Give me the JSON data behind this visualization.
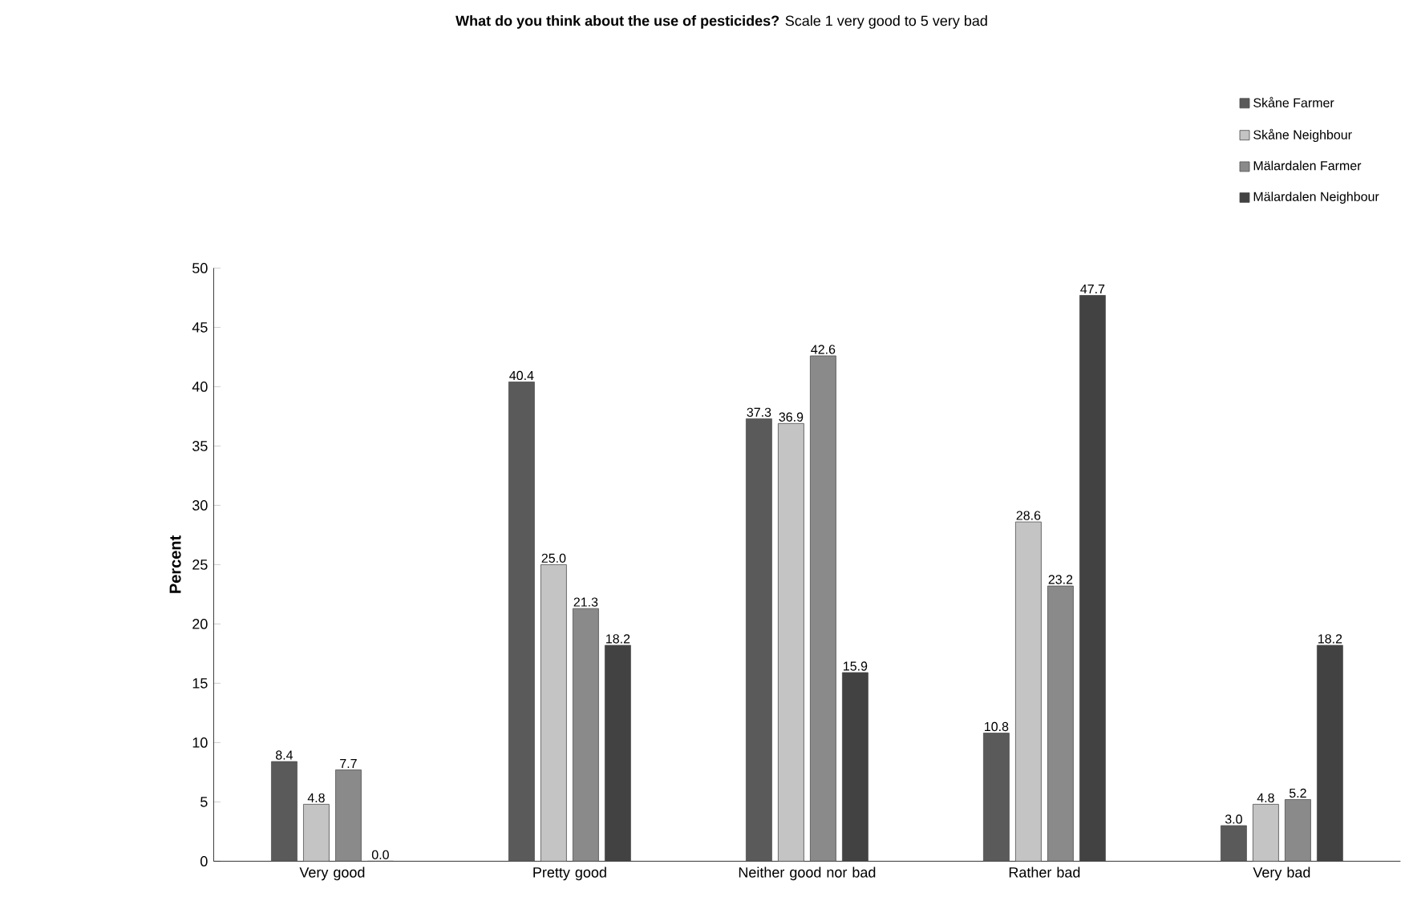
{
  "chart_data": {
    "type": "bar",
    "title": "**What do you think about the use of pesticides?** Scale 1 very good to 5 very bad",
    "ylabel": "Percent",
    "categories": [
      "Very good",
      "Pretty good",
      "Neither good nor bad",
      "Rather bad",
      "Very bad"
    ],
    "series": [
      {
        "name": "Skåne Farmer",
        "color": "#5a5a5a",
        "values": [
          8.4,
          40.4,
          37.3,
          10.8,
          3.0
        ],
        "value_labels": [
          "8.4",
          "40.4",
          "37.3",
          "10.8",
          "3.0"
        ]
      },
      {
        "name": "Skåne Neighbour",
        "color": "#c4c4c4",
        "values": [
          4.8,
          25.0,
          36.9,
          28.6,
          4.8
        ],
        "value_labels": [
          "4.8",
          "25.0",
          "36.9",
          "28.6",
          "4.8"
        ]
      },
      {
        "name": "Mälardalen Farmer",
        "color": "#8a8a8a",
        "values": [
          7.7,
          21.3,
          42.6,
          23.2,
          5.2
        ],
        "value_labels": [
          "7.7",
          "21.3",
          "42.6",
          "23.2",
          "5.2"
        ]
      },
      {
        "name": "Mälardalen Neighbour",
        "color": "#424242",
        "values": [
          0.0,
          18.2,
          15.9,
          47.7,
          18.2
        ],
        "value_labels": [
          "0.0",
          "18.2",
          "15.9",
          "47.7",
          "18.2"
        ]
      }
    ],
    "ylim": [
      0,
      50
    ],
    "yticks": [
      0,
      5,
      10,
      15,
      20,
      25,
      30,
      35,
      40,
      45,
      50
    ],
    "grid": false,
    "legend": "top right"
  }
}
